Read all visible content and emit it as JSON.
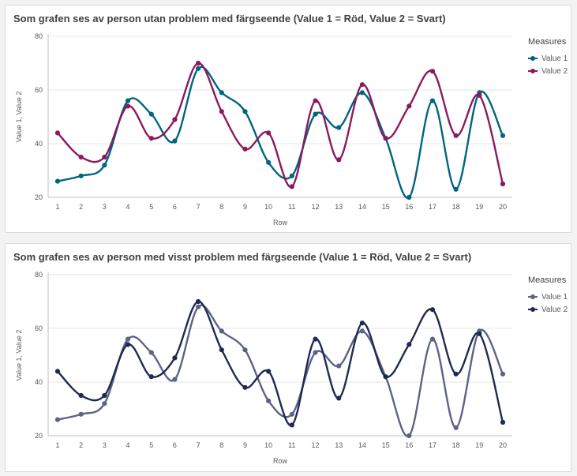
{
  "chart_data": [
    {
      "type": "line",
      "title": "Som grafen ses av person utan problem med färgseende (Value 1 = Röd, Value 2 = Svart)",
      "xlabel": "Row",
      "ylabel": "Value 1, Value 2",
      "ylim": [
        20,
        80
      ],
      "yticks": [
        20,
        40,
        60,
        80
      ],
      "x": [
        1,
        2,
        3,
        4,
        5,
        6,
        7,
        8,
        9,
        10,
        11,
        12,
        13,
        14,
        15,
        16,
        17,
        18,
        19,
        20
      ],
      "legend": {
        "title": "Measures",
        "position": "right"
      },
      "series": [
        {
          "name": "Value 1",
          "color": "#006580",
          "values": [
            26,
            28,
            32,
            56,
            51,
            41,
            68,
            59,
            52,
            33,
            28,
            51,
            46,
            59,
            42,
            20,
            56,
            23,
            59,
            43
          ]
        },
        {
          "name": "Value 2",
          "color": "#8b1a5e",
          "values": [
            44,
            35,
            35,
            54,
            42,
            49,
            70,
            52,
            38,
            44,
            24,
            56,
            34,
            62,
            42,
            54,
            67,
            43,
            58,
            25
          ]
        }
      ]
    },
    {
      "type": "line",
      "title": "Som grafen ses av person med visst problem med färgseende (Value 1 = Röd, Value 2 = Svart)",
      "xlabel": "Row",
      "ylabel": "Value 1, Value 2",
      "ylim": [
        20,
        80
      ],
      "yticks": [
        20,
        40,
        60,
        80
      ],
      "x": [
        1,
        2,
        3,
        4,
        5,
        6,
        7,
        8,
        9,
        10,
        11,
        12,
        13,
        14,
        15,
        16,
        17,
        18,
        19,
        20
      ],
      "legend": {
        "title": "Measures",
        "position": "right"
      },
      "series": [
        {
          "name": "Value 1",
          "color": "#5d6386",
          "values": [
            26,
            28,
            32,
            56,
            51,
            41,
            68,
            59,
            52,
            33,
            28,
            51,
            46,
            59,
            42,
            20,
            56,
            23,
            59,
            43
          ]
        },
        {
          "name": "Value 2",
          "color": "#1f2a52",
          "values": [
            44,
            35,
            35,
            54,
            42,
            49,
            70,
            52,
            38,
            44,
            24,
            56,
            34,
            62,
            42,
            54,
            67,
            43,
            58,
            25
          ]
        }
      ]
    }
  ]
}
